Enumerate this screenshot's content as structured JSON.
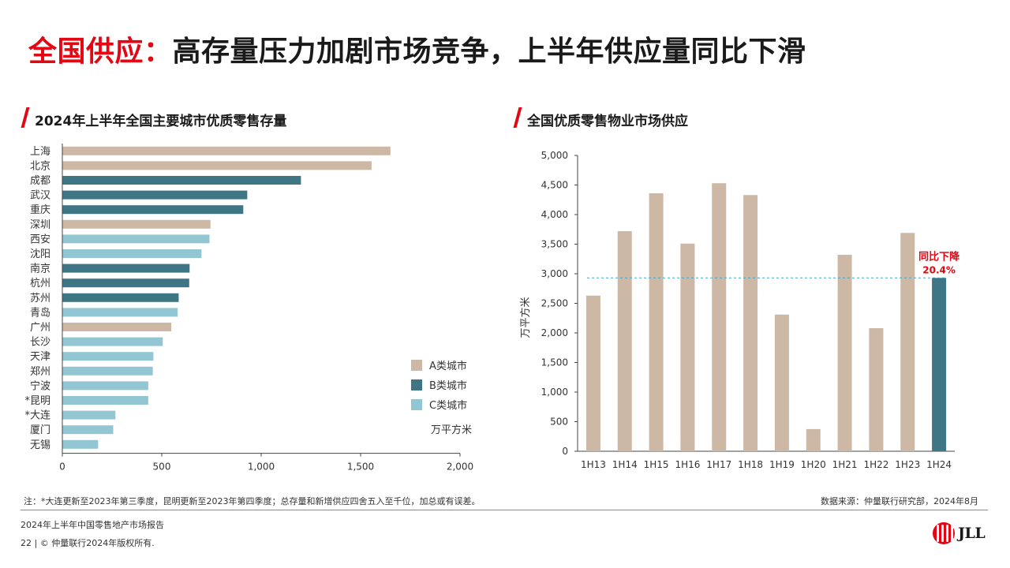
{
  "header": {
    "title_red": "全国供应：",
    "title_dark": "高存量压力加剧市场竞争，上半年供应量同比下滑"
  },
  "left_panel": {
    "title": "2024年上半年全国主要城市优质零售存量"
  },
  "right_panel": {
    "title": "全国优质零售物业市场供应"
  },
  "colors": {
    "A": "#cdb8a6",
    "B": "#3f7685",
    "C": "#93c6d3",
    "accent": "#e30613",
    "dashed": "#4aa3c4"
  },
  "chart_data": [
    {
      "type": "bar",
      "orientation": "horizontal",
      "title": "2024年上半年全国主要城市优质零售存量",
      "categories": [
        "上海",
        "北京",
        "成都",
        "武汉",
        "重庆",
        "深圳",
        "西安",
        "沈阳",
        "南京",
        "杭州",
        "苏州",
        "青岛",
        "广州",
        "长沙",
        "天津",
        "郑州",
        "宁波",
        "*昆明",
        "*大连",
        "厦门",
        "无锡"
      ],
      "values": [
        1650,
        1555,
        1200,
        930,
        910,
        745,
        740,
        700,
        640,
        638,
        585,
        580,
        548,
        505,
        458,
        455,
        432,
        432,
        267,
        256,
        180
      ],
      "classes": [
        "A",
        "A",
        "B",
        "B",
        "B",
        "A",
        "C",
        "C",
        "B",
        "B",
        "B",
        "C",
        "A",
        "C",
        "C",
        "C",
        "C",
        "C",
        "C",
        "C",
        "C"
      ],
      "xlim": [
        0,
        2000
      ],
      "xticks": [
        "0",
        "500",
        "1,000",
        "1,500",
        "2,000"
      ],
      "legend": [
        {
          "key": "A",
          "label": "A类城市"
        },
        {
          "key": "B",
          "label": "B类城市"
        },
        {
          "key": "C",
          "label": "C类城市"
        }
      ],
      "unit": "万平方米",
      "legend_position": "bottom-right"
    },
    {
      "type": "bar",
      "title": "全国优质零售物业市场供应",
      "categories": [
        "1H13",
        "1H14",
        "1H15",
        "1H16",
        "1H17",
        "1H18",
        "1H19",
        "1H20",
        "1H21",
        "1H22",
        "1H23",
        "1H24"
      ],
      "values": [
        2630,
        3720,
        4360,
        3510,
        4530,
        4330,
        2310,
        375,
        3320,
        2080,
        3690,
        2930
      ],
      "highlight_index": 11,
      "ylabel": "万平方米",
      "ylim": [
        0,
        5000
      ],
      "yticks": [
        "0",
        "500",
        "1,000",
        "1,500",
        "2,000",
        "2,500",
        "3,000",
        "3,500",
        "4,000",
        "4,500",
        "5,000"
      ],
      "reference_line": 2930,
      "annotation": {
        "label": "同比下降",
        "value": "20.4%"
      }
    }
  ],
  "notes": {
    "footnote": "注：*大连更新至2023年第三季度，昆明更新至2023年第四季度；总存量和新增供应四舍五入至千位，加总或有误差。",
    "source": "数据来源：仲量联行研究部，2024年8月"
  },
  "footer": {
    "report": "2024年上半年中国零售地产市场报告",
    "page": "22",
    "copyright": "| © 仲量联行2024年版权所有.",
    "logo_text": "JLL"
  }
}
